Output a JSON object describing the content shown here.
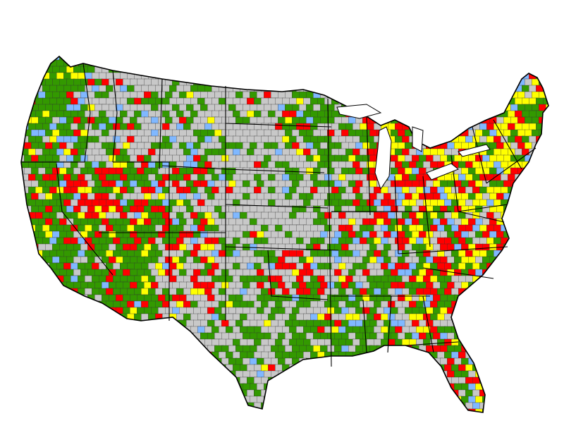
{
  "map": {
    "subject": "contiguous-united-states-county-choropleth",
    "colors": {
      "background": "#ffffff",
      "gray": "#c8c8c8",
      "green": "#339900",
      "red": "#ff0000",
      "yellow": "#ffff00",
      "blue": "#80b8ff",
      "county_border": "#333333",
      "state_border": "#000000"
    },
    "category_order": [
      "gray",
      "green",
      "red",
      "yellow",
      "blue"
    ]
  }
}
